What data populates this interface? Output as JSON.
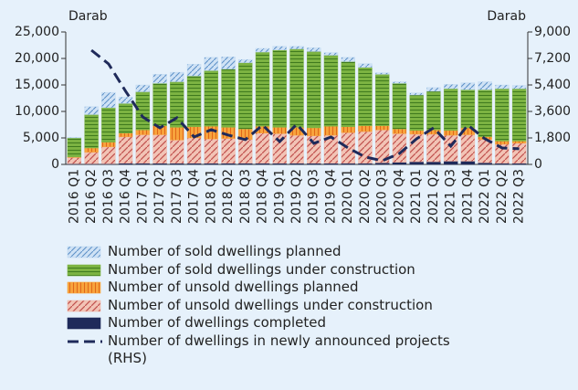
{
  "chart_data": {
    "type": "bar",
    "annotations": [
      "Darab",
      "Darab"
    ],
    "categories": [
      "2016 Q1",
      "2016 Q2",
      "2016 Q3",
      "2016 Q4",
      "2017 Q1",
      "2017 Q2",
      "2017 Q3",
      "2017 Q4",
      "2018 Q1",
      "2018 Q2",
      "2018 Q3",
      "2018 Q4",
      "2019 Q1",
      "2019 Q2",
      "2019 Q3",
      "2019 Q4",
      "2020 Q1",
      "2020 Q2",
      "2020 Q3",
      "2020 Q4",
      "2021 Q1",
      "2021 Q2",
      "2021 Q3",
      "2021 Q4",
      "2022 Q1",
      "2022 Q2",
      "2022 Q3"
    ],
    "series": [
      {
        "name": "Number of sold dwellings planned",
        "color": "#bcd7f0",
        "values": [
          100,
          1500,
          2900,
          1200,
          1300,
          1700,
          1800,
          2200,
          2500,
          2300,
          600,
          700,
          700,
          500,
          700,
          500,
          800,
          700,
          300,
          300,
          400,
          700,
          800,
          1300,
          1500,
          700,
          600
        ]
      },
      {
        "name": "Number of sold dwellings under construction",
        "color": "#7cb342",
        "values": [
          3600,
          6300,
          6500,
          5600,
          7200,
          8000,
          8600,
          9600,
          10500,
          11000,
          12500,
          14000,
          14600,
          14800,
          14400,
          13400,
          12300,
          11000,
          9700,
          8600,
          6700,
          7300,
          7900,
          7200,
          8900,
          9900,
          9900
        ]
      },
      {
        "name": "Number of unsold dwellings planned",
        "color": "#f7a33c",
        "values": [
          100,
          800,
          900,
          700,
          900,
          1700,
          2400,
          2100,
          2400,
          2100,
          2000,
          1300,
          1200,
          1500,
          1500,
          1700,
          1100,
          1100,
          800,
          900,
          700,
          800,
          900,
          1300,
          500,
          600,
          400
        ]
      },
      {
        "name": "Number of unsold dwellings under construction",
        "color": "#f2b8a8",
        "values": [
          1200,
          2200,
          3200,
          5000,
          5400,
          5400,
          4400,
          4800,
          4600,
          4700,
          4500,
          5700,
          5600,
          5300,
          5200,
          5300,
          5800,
          6000,
          6200,
          5400,
          5200,
          5200,
          4900,
          5000,
          4400,
          3600,
          3800
        ]
      },
      {
        "name": "Number of dwellings completed",
        "color": "#1f2a5a",
        "values": [
          100,
          100,
          100,
          200,
          200,
          200,
          200,
          200,
          200,
          200,
          200,
          200,
          200,
          200,
          200,
          200,
          200,
          200,
          300,
          400,
          500,
          500,
          600,
          600,
          300,
          200,
          200
        ]
      },
      {
        "name": "Number of dwellings in newly announced projects (RHS)",
        "color": "#1f2a5a",
        "axis": "y2",
        "type": "line",
        "values": [
          null,
          7760,
          6830,
          4970,
          3230,
          2480,
          3170,
          1860,
          2360,
          1990,
          1680,
          2670,
          1550,
          2730,
          1430,
          1860,
          1120,
          500,
          250,
          740,
          1740,
          2480,
          1240,
          2670,
          1740,
          1120,
          1060
        ]
      }
    ],
    "ylim": [
      0,
      25000
    ],
    "yticks": [
      0,
      {
        "value": 5000,
        "label": "5,000"
      },
      {
        "value": 10000,
        "label": "10,000"
      },
      {
        "value": 15000,
        "label": "15,000"
      },
      {
        "value": 20000,
        "label": "20,000"
      },
      {
        "value": 25000,
        "label": "25,000"
      }
    ],
    "y2lim": [
      0,
      9000
    ],
    "y2ticks": [
      0,
      {
        "value": 1800,
        "label": "1,800"
      },
      {
        "value": 3600,
        "label": "3,600"
      },
      {
        "value": 5400,
        "label": "5,400"
      },
      {
        "value": 7200,
        "label": "7,200"
      },
      {
        "value": 9000,
        "label": "9,000"
      }
    ],
    "stacked": true
  }
}
